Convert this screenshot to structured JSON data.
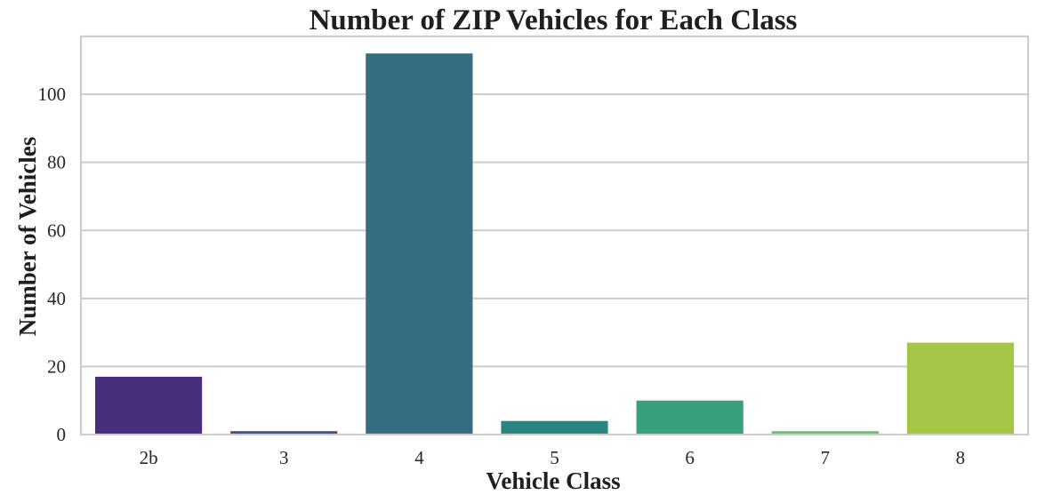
{
  "chart_data": {
    "type": "bar",
    "title": "Number of ZIP Vehicles for Each Class",
    "xlabel": "Vehicle Class",
    "ylabel": "Number of Vehicles",
    "categories": [
      "2b",
      "3",
      "4",
      "5",
      "6",
      "7",
      "8"
    ],
    "values": [
      17,
      1,
      112,
      4,
      10,
      1,
      27
    ],
    "colors": [
      "#472d7b",
      "#3b528b",
      "#376d80",
      "#2a8580",
      "#38a07a",
      "#5ec962",
      "#a3c745"
    ],
    "ylim": [
      0,
      117
    ],
    "yticks": [
      0,
      20,
      40,
      60,
      80,
      100
    ],
    "grid": "horizontal",
    "legend": "none",
    "frame_color": "#cccccc",
    "grid_color": "#cccccc"
  }
}
